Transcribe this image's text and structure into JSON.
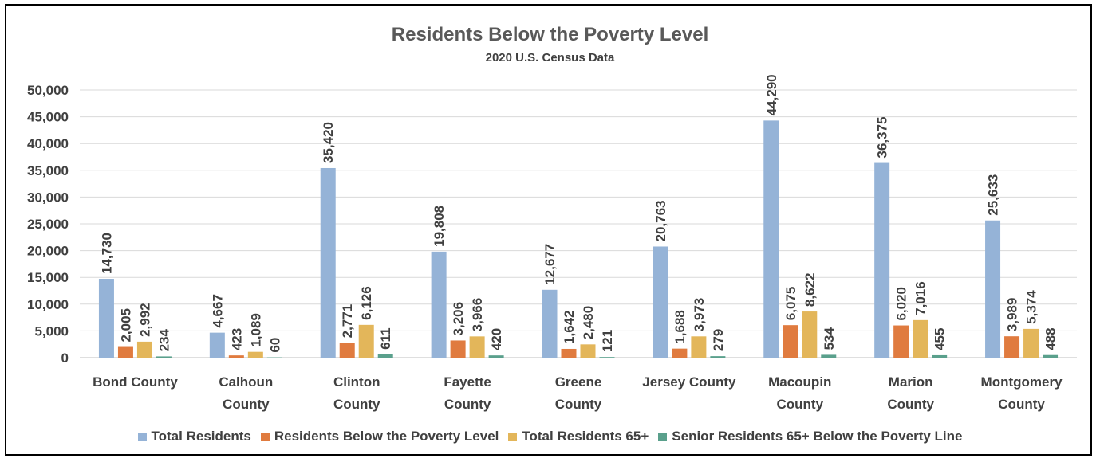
{
  "chart_data": {
    "type": "bar",
    "title": "Residents Below the Poverty Level",
    "subtitle": "2020 U.S. Census Data",
    "xlabel": "",
    "ylabel": "",
    "ylim": [
      0,
      50000
    ],
    "yticks": [
      0,
      5000,
      10000,
      15000,
      20000,
      25000,
      30000,
      35000,
      40000,
      45000,
      50000
    ],
    "ytick_labels": [
      "0",
      "5,000",
      "10,000",
      "15,000",
      "20,000",
      "25,000",
      "30,000",
      "35,000",
      "40,000",
      "45,000",
      "50,000"
    ],
    "grid": true,
    "legend_position": "bottom",
    "categories": [
      [
        "Bond County"
      ],
      [
        "Calhoun",
        "County"
      ],
      [
        "Clinton",
        "County"
      ],
      [
        "Fayette",
        "County"
      ],
      [
        "Greene",
        "County"
      ],
      [
        "Jersey County"
      ],
      [
        "Macoupin",
        "County"
      ],
      [
        "Marion",
        "County"
      ],
      [
        "Montgomery",
        "County"
      ]
    ],
    "series": [
      {
        "name": "Total Residents",
        "color": "#95b3d7",
        "values": [
          14730,
          4667,
          35420,
          19808,
          12677,
          20763,
          44290,
          36375,
          25633
        ],
        "labels": [
          "14,730",
          "4,667",
          "35,420",
          "19,808",
          "12,677",
          "20,763",
          "44,290",
          "36,375",
          "25,633"
        ]
      },
      {
        "name": "Residents Below the Poverty Level",
        "color": "#e07b3f",
        "values": [
          2005,
          423,
          2771,
          3206,
          1642,
          1688,
          6075,
          6020,
          3989
        ],
        "labels": [
          "2,005",
          "423",
          "2,771",
          "3,206",
          "1,642",
          "1,688",
          "6,075",
          "6,020",
          "3,989"
        ]
      },
      {
        "name": "Total Residents 65+",
        "color": "#e3b65a",
        "values": [
          2992,
          1089,
          6126,
          3966,
          2480,
          3973,
          8622,
          7016,
          5374
        ],
        "labels": [
          "2,992",
          "1,089",
          "6,126",
          "3,966",
          "2,480",
          "3,973",
          "8,622",
          "7,016",
          "5,374"
        ]
      },
      {
        "name": "Senior Residents 65+ Below the Poverty Line",
        "color": "#5aa08c",
        "values": [
          234,
          60,
          611,
          420,
          121,
          279,
          534,
          455,
          488
        ],
        "labels": [
          "234",
          "60",
          "611",
          "420",
          "121",
          "279",
          "534",
          "455",
          "488"
        ]
      }
    ]
  }
}
